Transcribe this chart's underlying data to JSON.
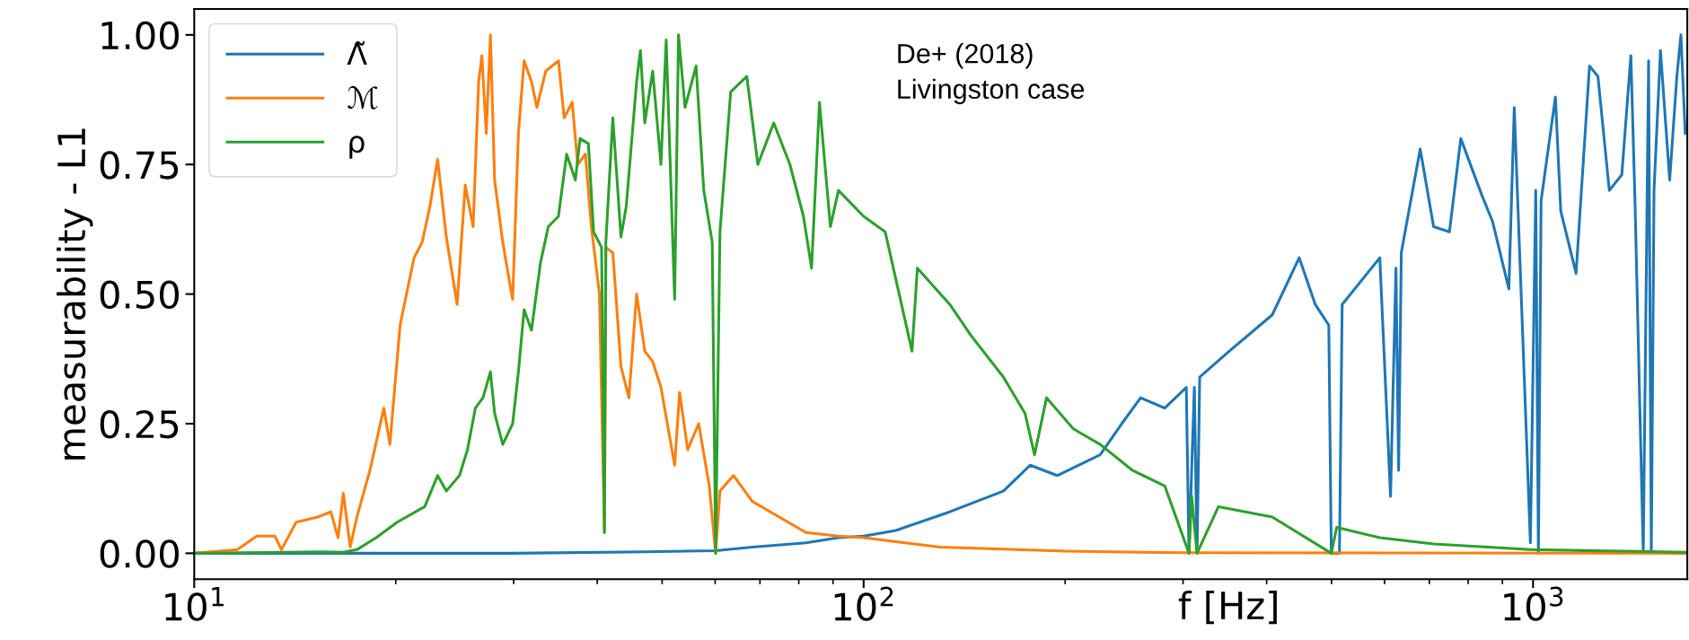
{
  "chart_data": {
    "type": "line",
    "xlabel": "f [Hz]",
    "ylabel": "measurability - L1",
    "log": "x",
    "grid": false,
    "legend": "top left",
    "line_style": "solid",
    "marker": "none",
    "xlim": [
      10,
      1700
    ],
    "xticks": [
      {
        "value": 10,
        "label": "10$^{1}$"
      },
      {
        "value": 100,
        "label": "10$^{2}$"
      },
      {
        "value": 1000,
        "label": "10$^{3}$"
      }
    ],
    "ylim": [
      -0.05,
      1.05
    ],
    "yticks": [
      {
        "value": 0,
        "label": "0.00"
      },
      {
        "value": 0.25,
        "label": "0.25"
      },
      {
        "value": 0.5,
        "label": "0.50"
      },
      {
        "value": 0.75,
        "label": "0.75"
      },
      {
        "value": 1,
        "label": "1.00"
      }
    ],
    "annotations": [
      "De+ (2018)\nLivingston case"
    ],
    "series": [
      {
        "name": "Λ̃",
        "color": "#1f77b4",
        "x": [
          10,
          30,
          47.1,
          60.1,
          68.2,
          82,
          91.7,
          100,
          111.7,
          134.5,
          161.7,
          177.4,
          194.6,
          225.6,
          243,
          259.3,
          281.7,
          303.4,
          306.2,
          311.9,
          314.8,
          317.7,
          351.8,
          407.8,
          447.4,
          472.8,
          495.3,
          499.6,
          513.8,
          518.6,
          590.3,
          612.5,
          624,
          629.8,
          635.6,
          678.3,
          710.3,
          750,
          780,
          838.9,
          870,
          920.2,
          937.4,
          990.9,
          1009.3,
          1018.6,
          1028,
          1080,
          1100,
          1159.5,
          1214.3,
          1250,
          1300,
          1357,
          1400,
          1420,
          1461,
          1488,
          1502,
          1516,
          1550,
          1600,
          1640,
          1663,
          1688
        ],
        "values": [
          0,
          0,
          0.003,
          0.005,
          0.012,
          0.02,
          0.03,
          0.033,
          0.044,
          0.08,
          0.12,
          0.17,
          0.15,
          0.19,
          0.25,
          0.3,
          0.28,
          0.32,
          0,
          0.32,
          0,
          0.34,
          0.39,
          0.46,
          0.57,
          0.48,
          0.44,
          0,
          0,
          0.48,
          0.57,
          0.11,
          0.55,
          0.16,
          0.58,
          0.78,
          0.63,
          0.62,
          0.8,
          0.69,
          0.64,
          0.51,
          0.86,
          0.02,
          0.7,
          0,
          0.68,
          0.88,
          0.66,
          0.54,
          0.94,
          0.92,
          0.7,
          0.73,
          0.96,
          0.68,
          0,
          0.95,
          0,
          0.7,
          0.97,
          0.72,
          0.92,
          1.0,
          0.81
        ]
      },
      {
        "name": "ℳ",
        "color": "#ff7f0e",
        "x": [
          10,
          11.6,
          12.4,
          13.2,
          13.5,
          14.2,
          15.3,
          16.0,
          16.4,
          16.7,
          17.1,
          17.5,
          18.3,
          19.2,
          19.6,
          20.3,
          21.3,
          21.9,
          22.5,
          23.1,
          23.8,
          24.7,
          25.4,
          26.1,
          26.6,
          26.9,
          27.3,
          27.7,
          28.1,
          28.9,
          29.7,
          29.9,
          30.5,
          31.1,
          31.9,
          32.5,
          33.5,
          35.0,
          35.7,
          36.7,
          37.4,
          38.4,
          39.2,
          40.3,
          41.0,
          41.2,
          42.2,
          43.4,
          44.6,
          45.8,
          47.1,
          48.4,
          49.8,
          52.2,
          53.1,
          54.6,
          56.7,
          58.8,
          60.1,
          61.0,
          63.9,
          68.2,
          74.8,
          82.0,
          91.7,
          100,
          130,
          200,
          300,
          1688
        ],
        "values": [
          0,
          0.007,
          0.033,
          0.033,
          0.007,
          0.06,
          0.07,
          0.08,
          0.03,
          0.116,
          0.012,
          0.07,
          0.16,
          0.28,
          0.21,
          0.44,
          0.57,
          0.6,
          0.67,
          0.76,
          0.61,
          0.48,
          0.71,
          0.63,
          0.91,
          0.96,
          0.81,
          1.0,
          0.72,
          0.6,
          0.51,
          0.49,
          0.81,
          0.95,
          0.91,
          0.86,
          0.93,
          0.95,
          0.84,
          0.87,
          0.75,
          0.77,
          0.63,
          0.5,
          0.04,
          0.59,
          0.58,
          0.36,
          0.3,
          0.5,
          0.39,
          0.37,
          0.32,
          0.17,
          0.31,
          0.2,
          0.25,
          0.13,
          0,
          0.12,
          0.15,
          0.1,
          0.07,
          0.04,
          0.033,
          0.03,
          0.012,
          0.004,
          0.001,
          0
        ]
      },
      {
        "name": "ρ",
        "color": "#2ca02c",
        "x": [
          10,
          15.5,
          16.7,
          17.5,
          18.7,
          20.1,
          22.1,
          23.1,
          23.8,
          24.9,
          25.6,
          26.3,
          27.0,
          27.7,
          28.1,
          28.9,
          29.9,
          30.5,
          31.1,
          31.9,
          32.9,
          33.8,
          35.0,
          36.0,
          37.1,
          37.7,
          38.8,
          39.5,
          40.6,
          41.0,
          41.2,
          42.2,
          43.4,
          44.2,
          45.8,
          46.4,
          47.1,
          48.4,
          49.8,
          50.7,
          52.2,
          52.9,
          54.1,
          56.2,
          57.7,
          59.4,
          60.1,
          61.0,
          63.3,
          66.9,
          69.5,
          73.4,
          77.6,
          81.3,
          83.6,
          85.9,
          89.2,
          91.7,
          100,
          107.7,
          118.1,
          120.3,
          134.5,
          144.7,
          161.7,
          174.2,
          180.0,
          187.6,
          205.7,
          225.6,
          252.1,
          281.7,
          306.2,
          309,
          314.8,
          338.9,
          407.8,
          499.6,
          509,
          590.3,
          710.3,
          990.9,
          1688
        ],
        "values": [
          0,
          0.003,
          0.002,
          0.007,
          0.03,
          0.06,
          0.09,
          0.15,
          0.12,
          0.15,
          0.2,
          0.28,
          0.3,
          0.35,
          0.27,
          0.21,
          0.25,
          0.35,
          0.47,
          0.43,
          0.56,
          0.63,
          0.65,
          0.77,
          0.72,
          0.8,
          0.79,
          0.62,
          0.59,
          0.04,
          0.6,
          0.84,
          0.61,
          0.67,
          0.91,
          0.97,
          0.83,
          0.93,
          0.75,
          0.99,
          0.49,
          1.0,
          0.86,
          0.94,
          0.7,
          0.6,
          0,
          0.62,
          0.89,
          0.92,
          0.75,
          0.83,
          0.75,
          0.65,
          0.55,
          0.87,
          0.63,
          0.7,
          0.65,
          0.62,
          0.39,
          0.55,
          0.48,
          0.42,
          0.34,
          0.27,
          0.19,
          0.3,
          0.24,
          0.21,
          0.16,
          0.13,
          0,
          0.11,
          0,
          0.09,
          0.07,
          0,
          0.05,
          0.03,
          0.018,
          0.007,
          0.002
        ]
      }
    ]
  }
}
